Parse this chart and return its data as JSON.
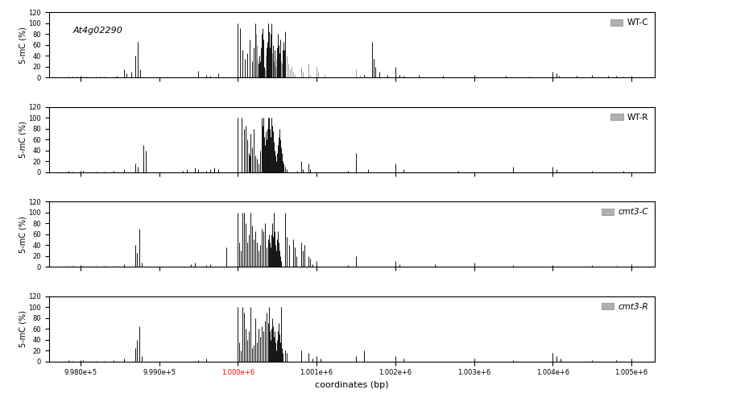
{
  "title_annotation": "At4g02290",
  "xlabel": "coordinates (bp)",
  "ylabel": "5-mC (%)",
  "ylim": [
    0,
    120
  ],
  "yticks": [
    0,
    20,
    40,
    60,
    80,
    100,
    120
  ],
  "xlim": [
    997600.0,
    1005300.0
  ],
  "xticks": [
    998000.0,
    999000.0,
    1000000.0,
    1001000.0,
    1002000.0,
    1003000.0,
    1004000.0,
    1005000.0
  ],
  "panel_labels": [
    "WT-C",
    "WT-R",
    "cmt3-C",
    "cmt3-R"
  ],
  "bar_color_dark": "#111111",
  "bar_color_gray": "#999999",
  "wt_c": [
    [
      997850.0,
      2
    ],
    [
      997900.0,
      1
    ],
    [
      997950.0,
      2
    ],
    [
      998000.0,
      3
    ],
    [
      998030.0,
      2
    ],
    [
      998070.0,
      1
    ],
    [
      998200.0,
      1
    ],
    [
      998250.0,
      2
    ],
    [
      998300.0,
      1
    ],
    [
      998420.0,
      2
    ],
    [
      998460.0,
      3
    ],
    [
      998550.0,
      15
    ],
    [
      998580.0,
      8
    ],
    [
      998650.0,
      10
    ],
    [
      998700.0,
      40
    ],
    [
      998730.0,
      65
    ],
    [
      998760.0,
      15
    ],
    [
      999500.0,
      12
    ],
    [
      999600.0,
      5
    ],
    [
      999650.0,
      3
    ],
    [
      999750.0,
      8
    ],
    [
      1000000.0,
      100
    ],
    [
      1000030.0,
      90
    ],
    [
      1000060.0,
      50
    ],
    [
      1000090.0,
      35
    ],
    [
      1000120.0,
      45
    ],
    [
      1000150.0,
      70
    ],
    [
      1000180.0,
      30
    ],
    [
      1000200.0,
      55
    ],
    [
      1000220.0,
      100
    ],
    [
      1000230.0,
      80
    ],
    [
      1000240.0,
      60
    ],
    [
      1000250.0,
      35
    ],
    [
      1000260.0,
      25
    ],
    [
      1000270.0,
      40
    ],
    [
      1000280.0,
      30
    ],
    [
      1000290.0,
      55
    ],
    [
      1000300.0,
      80
    ],
    [
      1000310.0,
      90
    ],
    [
      1000320.0,
      70
    ],
    [
      1000330.0,
      20
    ],
    [
      1000340.0,
      15
    ],
    [
      1000350.0,
      40
    ],
    [
      1000360.0,
      55
    ],
    [
      1000370.0,
      65
    ],
    [
      1000380.0,
      100
    ],
    [
      1000390.0,
      100
    ],
    [
      1000400.0,
      85
    ],
    [
      1000410.0,
      55
    ],
    [
      1000420.0,
      80
    ],
    [
      1000430.0,
      100
    ],
    [
      1000440.0,
      45
    ],
    [
      1000450.0,
      60
    ],
    [
      1000460.0,
      30
    ],
    [
      1000470.0,
      50
    ],
    [
      1000480.0,
      20
    ],
    [
      1000490.0,
      35
    ],
    [
      1000500.0,
      55
    ],
    [
      1000510.0,
      80
    ],
    [
      1000520.0,
      60
    ],
    [
      1000530.0,
      45
    ],
    [
      1000540.0,
      70
    ],
    [
      1000550.0,
      30
    ],
    [
      1000560.0,
      25
    ],
    [
      1000570.0,
      50
    ],
    [
      1000580.0,
      65
    ],
    [
      1000590.0,
      50
    ],
    [
      1000600.0,
      85
    ],
    [
      1000620.0,
      40
    ],
    [
      1000640.0,
      25
    ],
    [
      1000660.0,
      15
    ],
    [
      1000680.0,
      20
    ],
    [
      1000700.0,
      10
    ],
    [
      1000720.0,
      5
    ],
    [
      1000800.0,
      20
    ],
    [
      1000820.0,
      10
    ],
    [
      1000900.0,
      25
    ],
    [
      1000920.0,
      5
    ],
    [
      1001000.0,
      20
    ],
    [
      1001020.0,
      10
    ],
    [
      1001100.0,
      5
    ],
    [
      1001500.0,
      15
    ],
    [
      1001550.0,
      5
    ],
    [
      1001600.0,
      5
    ],
    [
      1001700.0,
      65
    ],
    [
      1001720.0,
      35
    ],
    [
      1001750.0,
      20
    ],
    [
      1001800.0,
      10
    ],
    [
      1001900.0,
      5
    ],
    [
      1002000.0,
      20
    ],
    [
      1002050.0,
      5
    ],
    [
      1002100.0,
      3
    ],
    [
      1002300.0,
      5
    ],
    [
      1002600.0,
      3
    ],
    [
      1003000.0,
      5
    ],
    [
      1003400.0,
      3
    ],
    [
      1003700.0,
      2
    ],
    [
      1004000.0,
      10
    ],
    [
      1004050.0,
      8
    ],
    [
      1004080.0,
      3
    ],
    [
      1004300.0,
      3
    ],
    [
      1004500.0,
      5
    ],
    [
      1004700.0,
      3
    ],
    [
      1004800.0,
      3
    ],
    [
      1004900.0,
      2
    ],
    [
      1005000.0,
      3
    ]
  ],
  "wt_c_gray": [
    [
      1000230.0,
      80
    ],
    [
      1000240.0,
      60
    ],
    [
      1000250.0,
      35
    ],
    [
      1000340.0,
      15
    ],
    [
      1000350.0,
      40
    ],
    [
      1000440.0,
      45
    ],
    [
      1000460.0,
      30
    ],
    [
      1000480.0,
      20
    ],
    [
      1000490.0,
      35
    ],
    [
      1000550.0,
      30
    ],
    [
      1000560.0,
      25
    ],
    [
      1000620.0,
      40
    ],
    [
      1000640.0,
      25
    ],
    [
      1000660.0,
      15
    ],
    [
      1000680.0,
      20
    ],
    [
      1000700.0,
      10
    ],
    [
      1000720.0,
      5
    ],
    [
      1000800.0,
      20
    ],
    [
      1000820.0,
      10
    ],
    [
      1000900.0,
      25
    ],
    [
      1000920.0,
      5
    ],
    [
      1001000.0,
      20
    ],
    [
      1001020.0,
      10
    ],
    [
      1001100.0,
      5
    ],
    [
      1001500.0,
      15
    ],
    [
      1001550.0,
      5
    ]
  ],
  "wt_r": [
    [
      997850.0,
      2
    ],
    [
      997900.0,
      1
    ],
    [
      998000.0,
      3
    ],
    [
      998030.0,
      2
    ],
    [
      998200.0,
      1
    ],
    [
      998300.0,
      1
    ],
    [
      998420.0,
      2
    ],
    [
      998460.0,
      1
    ],
    [
      998550.0,
      5
    ],
    [
      998700.0,
      15
    ],
    [
      998730.0,
      10
    ],
    [
      998800.0,
      50
    ],
    [
      998830.0,
      40
    ],
    [
      999300.0,
      3
    ],
    [
      999350.0,
      5
    ],
    [
      999450.0,
      8
    ],
    [
      999500.0,
      5
    ],
    [
      999600.0,
      3
    ],
    [
      999650.0,
      5
    ],
    [
      999700.0,
      8
    ],
    [
      999750.0,
      5
    ],
    [
      1000000.0,
      100
    ],
    [
      1000050.0,
      100
    ],
    [
      1000080.0,
      80
    ],
    [
      1000100.0,
      85
    ],
    [
      1000120.0,
      60
    ],
    [
      1000140.0,
      35
    ],
    [
      1000150.0,
      30
    ],
    [
      1000160.0,
      70
    ],
    [
      1000180.0,
      45
    ],
    [
      1000200.0,
      80
    ],
    [
      1000220.0,
      30
    ],
    [
      1000240.0,
      25
    ],
    [
      1000260.0,
      15
    ],
    [
      1000280.0,
      40
    ],
    [
      1000300.0,
      100
    ],
    [
      1000310.0,
      85
    ],
    [
      1000320.0,
      100
    ],
    [
      1000330.0,
      65
    ],
    [
      1000340.0,
      50
    ],
    [
      1000350.0,
      75
    ],
    [
      1000360.0,
      60
    ],
    [
      1000370.0,
      80
    ],
    [
      1000380.0,
      100
    ],
    [
      1000390.0,
      90
    ],
    [
      1000400.0,
      100
    ],
    [
      1000410.0,
      80
    ],
    [
      1000420.0,
      65
    ],
    [
      1000430.0,
      100
    ],
    [
      1000440.0,
      85
    ],
    [
      1000450.0,
      75
    ],
    [
      1000460.0,
      55
    ],
    [
      1000470.0,
      40
    ],
    [
      1000480.0,
      30
    ],
    [
      1000490.0,
      20
    ],
    [
      1000500.0,
      35
    ],
    [
      1000510.0,
      50
    ],
    [
      1000520.0,
      65
    ],
    [
      1000530.0,
      80
    ],
    [
      1000540.0,
      60
    ],
    [
      1000550.0,
      45
    ],
    [
      1000560.0,
      35
    ],
    [
      1000570.0,
      20
    ],
    [
      1000580.0,
      15
    ],
    [
      1000600.0,
      10
    ],
    [
      1000620.0,
      5
    ],
    [
      1000750.0,
      3
    ],
    [
      1000800.0,
      20
    ],
    [
      1000820.0,
      5
    ],
    [
      1000900.0,
      15
    ],
    [
      1000920.0,
      5
    ],
    [
      1001400.0,
      3
    ],
    [
      1001500.0,
      35
    ],
    [
      1001650.0,
      5
    ],
    [
      1002000.0,
      15
    ],
    [
      1002100.0,
      5
    ],
    [
      1002800.0,
      3
    ],
    [
      1003500.0,
      10
    ],
    [
      1004000.0,
      10
    ],
    [
      1004050.0,
      5
    ],
    [
      1004500.0,
      3
    ],
    [
      1004900.0,
      2
    ]
  ],
  "cmt3_c": [
    [
      997850.0,
      2
    ],
    [
      997900.0,
      1
    ],
    [
      998000.0,
      3
    ],
    [
      998030.0,
      2
    ],
    [
      998200.0,
      1
    ],
    [
      998300.0,
      1
    ],
    [
      998420.0,
      2
    ],
    [
      998460.0,
      1
    ],
    [
      998550.0,
      5
    ],
    [
      998700.0,
      40
    ],
    [
      998720.0,
      25
    ],
    [
      998750.0,
      70
    ],
    [
      998780.0,
      8
    ],
    [
      999400.0,
      5
    ],
    [
      999450.0,
      8
    ],
    [
      999600.0,
      3
    ],
    [
      999650.0,
      5
    ],
    [
      999850.0,
      35
    ],
    [
      1000000.0,
      100
    ],
    [
      1000020.0,
      45
    ],
    [
      1000040.0,
      30
    ],
    [
      1000060.0,
      100
    ],
    [
      1000080.0,
      100
    ],
    [
      1000100.0,
      80
    ],
    [
      1000120.0,
      45
    ],
    [
      1000140.0,
      60
    ],
    [
      1000160.0,
      100
    ],
    [
      1000180.0,
      75
    ],
    [
      1000200.0,
      50
    ],
    [
      1000220.0,
      65
    ],
    [
      1000240.0,
      45
    ],
    [
      1000260.0,
      30
    ],
    [
      1000280.0,
      40
    ],
    [
      1000300.0,
      70
    ],
    [
      1000320.0,
      65
    ],
    [
      1000340.0,
      80
    ],
    [
      1000360.0,
      35
    ],
    [
      1000380.0,
      50
    ],
    [
      1000400.0,
      60
    ],
    [
      1000410.0,
      45
    ],
    [
      1000420.0,
      35
    ],
    [
      1000430.0,
      60
    ],
    [
      1000440.0,
      80
    ],
    [
      1000450.0,
      55
    ],
    [
      1000460.0,
      100
    ],
    [
      1000470.0,
      65
    ],
    [
      1000480.0,
      40
    ],
    [
      1000490.0,
      30
    ],
    [
      1000500.0,
      50
    ],
    [
      1000510.0,
      65
    ],
    [
      1000520.0,
      45
    ],
    [
      1000530.0,
      30
    ],
    [
      1000540.0,
      20
    ],
    [
      1000550.0,
      10
    ],
    [
      1000600.0,
      100
    ],
    [
      1000620.0,
      55
    ],
    [
      1000650.0,
      40
    ],
    [
      1000700.0,
      50
    ],
    [
      1000720.0,
      35
    ],
    [
      1000740.0,
      20
    ],
    [
      1000800.0,
      45
    ],
    [
      1000820.0,
      30
    ],
    [
      1000850.0,
      40
    ],
    [
      1000900.0,
      20
    ],
    [
      1000920.0,
      15
    ],
    [
      1000950.0,
      5
    ],
    [
      1001000.0,
      10
    ],
    [
      1001400.0,
      3
    ],
    [
      1001500.0,
      20
    ],
    [
      1002000.0,
      10
    ],
    [
      1002050.0,
      5
    ],
    [
      1002500.0,
      5
    ],
    [
      1003000.0,
      8
    ],
    [
      1003500.0,
      3
    ],
    [
      1004000.0,
      3
    ],
    [
      1004500.0,
      3
    ],
    [
      1004800.0,
      2
    ],
    [
      1005000.0,
      5
    ]
  ],
  "cmt3_r": [
    [
      997850.0,
      2
    ],
    [
      997900.0,
      1
    ],
    [
      998000.0,
      3
    ],
    [
      998030.0,
      2
    ],
    [
      998200.0,
      1
    ],
    [
      998300.0,
      1
    ],
    [
      998420.0,
      2
    ],
    [
      998460.0,
      1
    ],
    [
      998550.0,
      5
    ],
    [
      998700.0,
      25
    ],
    [
      998720.0,
      40
    ],
    [
      998750.0,
      65
    ],
    [
      998780.0,
      10
    ],
    [
      999500.0,
      3
    ],
    [
      999600.0,
      5
    ],
    [
      1000000.0,
      100
    ],
    [
      1000020.0,
      35
    ],
    [
      1000040.0,
      20
    ],
    [
      1000060.0,
      100
    ],
    [
      1000080.0,
      90
    ],
    [
      1000100.0,
      60
    ],
    [
      1000120.0,
      40
    ],
    [
      1000140.0,
      55
    ],
    [
      1000160.0,
      100
    ],
    [
      1000180.0,
      25
    ],
    [
      1000200.0,
      30
    ],
    [
      1000220.0,
      80
    ],
    [
      1000240.0,
      35
    ],
    [
      1000260.0,
      60
    ],
    [
      1000280.0,
      45
    ],
    [
      1000300.0,
      65
    ],
    [
      1000320.0,
      55
    ],
    [
      1000340.0,
      75
    ],
    [
      1000360.0,
      90
    ],
    [
      1000380.0,
      70
    ],
    [
      1000400.0,
      100
    ],
    [
      1000410.0,
      55
    ],
    [
      1000420.0,
      40
    ],
    [
      1000430.0,
      60
    ],
    [
      1000440.0,
      80
    ],
    [
      1000450.0,
      65
    ],
    [
      1000460.0,
      45
    ],
    [
      1000470.0,
      55
    ],
    [
      1000480.0,
      35
    ],
    [
      1000490.0,
      20
    ],
    [
      1000500.0,
      40
    ],
    [
      1000510.0,
      55
    ],
    [
      1000520.0,
      70
    ],
    [
      1000530.0,
      50
    ],
    [
      1000540.0,
      35
    ],
    [
      1000550.0,
      100
    ],
    [
      1000560.0,
      25
    ],
    [
      1000570.0,
      15
    ],
    [
      1000600.0,
      20
    ],
    [
      1000620.0,
      15
    ],
    [
      1000800.0,
      20
    ],
    [
      1000900.0,
      15
    ],
    [
      1000950.0,
      5
    ],
    [
      1001000.0,
      10
    ],
    [
      1001050.0,
      5
    ],
    [
      1001500.0,
      10
    ],
    [
      1001600.0,
      20
    ],
    [
      1002000.0,
      10
    ],
    [
      1002100.0,
      5
    ],
    [
      1003000.0,
      5
    ],
    [
      1003500.0,
      3
    ],
    [
      1004000.0,
      15
    ],
    [
      1004050.0,
      10
    ],
    [
      1004100.0,
      5
    ],
    [
      1004500.0,
      3
    ],
    [
      1004800.0,
      2
    ],
    [
      1005000.0,
      5
    ]
  ]
}
